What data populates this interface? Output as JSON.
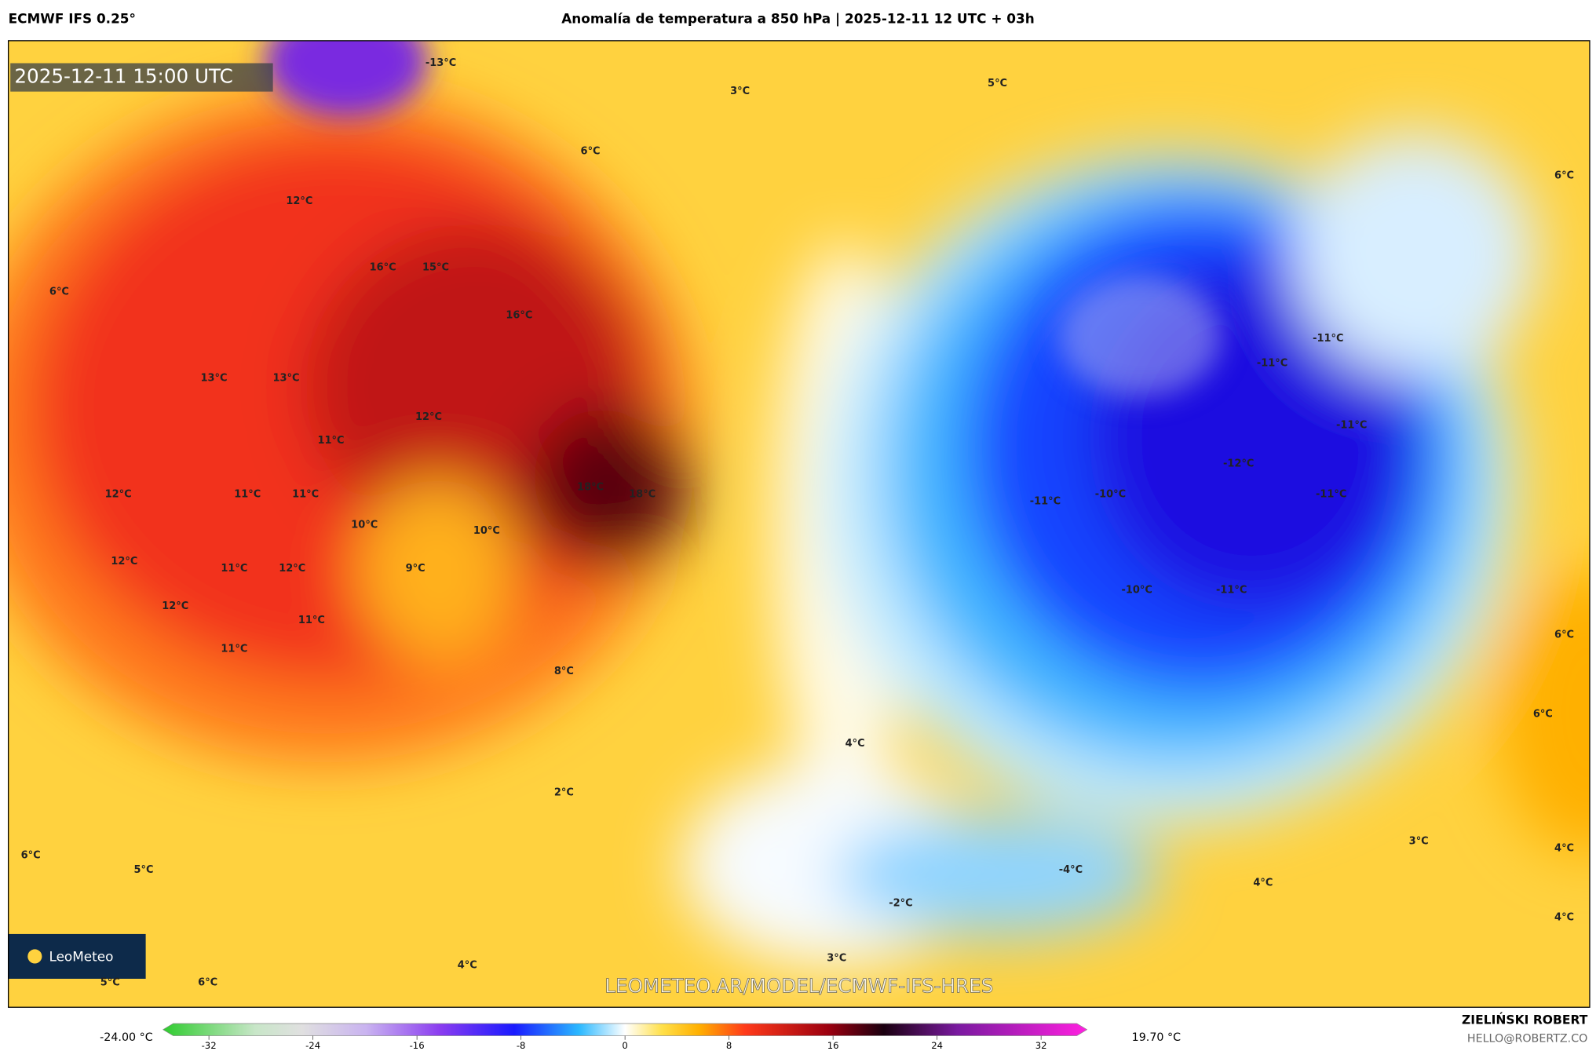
{
  "header": {
    "model": "ECMWF IFS 0.25°",
    "title": "Anomalía de temperatura a 850 hPa | 2025-12-11 12 UTC + 03h"
  },
  "map": {
    "timestamp": "2025-12-11 15:00 UTC",
    "logo": "LeoMeteo",
    "watermark": "LEOMETEO.AR/MODEL/ECMWF-IFS-HRES",
    "labels": [
      "-13°C",
      "3°C",
      "5°C",
      "6°C",
      "12°C",
      "16°C",
      "15°C",
      "16°C",
      "6°C",
      "13°C",
      "13°C",
      "12°C",
      "11°C",
      "12°C",
      "11°C",
      "11°C",
      "10°C",
      "18°C",
      "18°C",
      "10°C",
      "12°C",
      "11°C",
      "12°C",
      "9°C",
      "12°C",
      "11°C",
      "11°C",
      "8°C",
      "4°C",
      "2°C",
      "6°C",
      "5°C",
      "4°C",
      "5°C",
      "6°C",
      "3°C",
      "-2°C",
      "-4°C",
      "4°C",
      "3°C",
      "4°C",
      "4°C",
      "6°C",
      "6°C",
      "6°C",
      "-11°C",
      "-11°C",
      "-11°C",
      "-12°C",
      "-11°C",
      "-11°C",
      "-10°C",
      "-10°C",
      "-11°C"
    ]
  },
  "colorbar": {
    "min_label": "-24.00 °C",
    "max_label": "19.70 °C",
    "lim": [
      -36,
      36
    ],
    "ticks": [
      -32,
      -24,
      -16,
      -8,
      0,
      8,
      16,
      24,
      32
    ]
  },
  "footer": {
    "author": "ZIELIŃSKI ROBERT",
    "email": "HELLO@ROBERTZ.CO"
  }
}
